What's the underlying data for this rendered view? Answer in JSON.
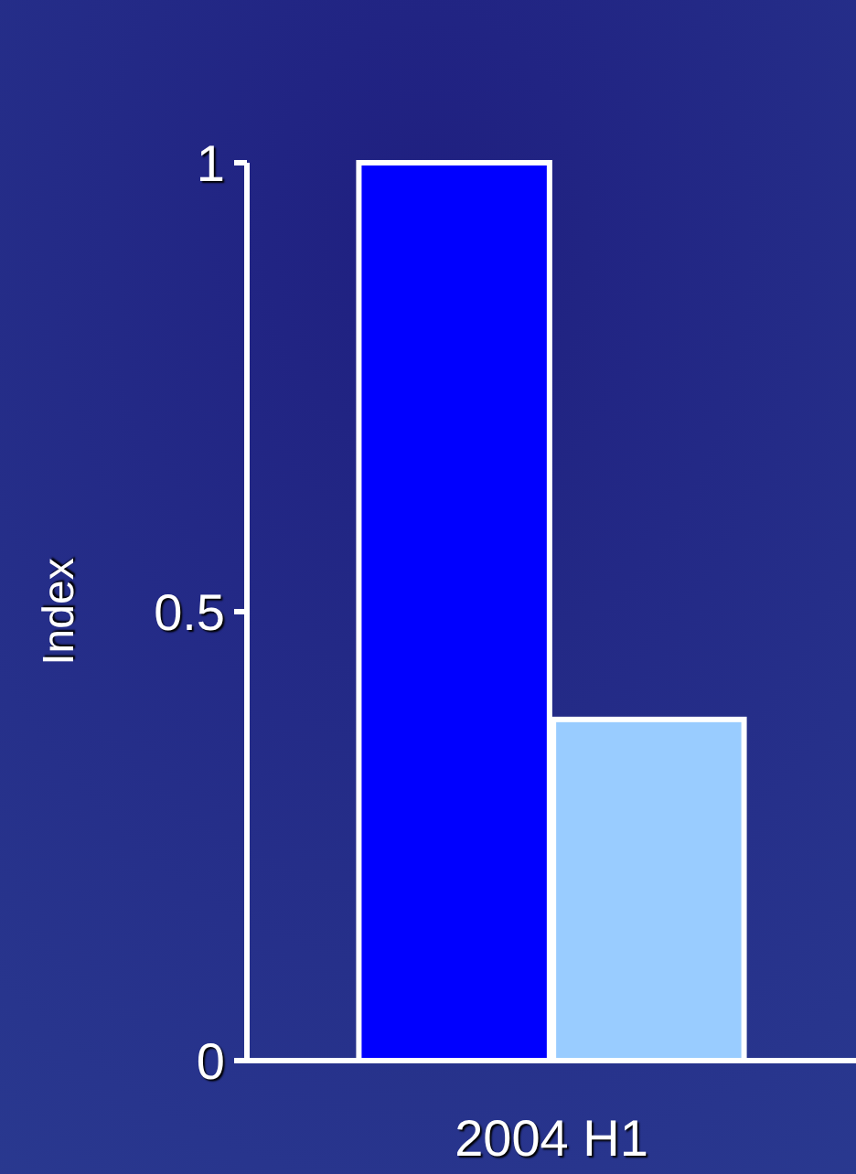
{
  "chart_data": {
    "type": "bar",
    "ylabel": "Index",
    "categories": [
      "2004 H1"
    ],
    "series": [
      {
        "color": "#0000ff",
        "values": [
          1
        ]
      },
      {
        "color": "#99ccff",
        "values": [
          0.38
        ]
      }
    ],
    "ylim": [
      0,
      1
    ],
    "yticks": [
      0,
      0.5,
      1
    ],
    "grid": false
  }
}
